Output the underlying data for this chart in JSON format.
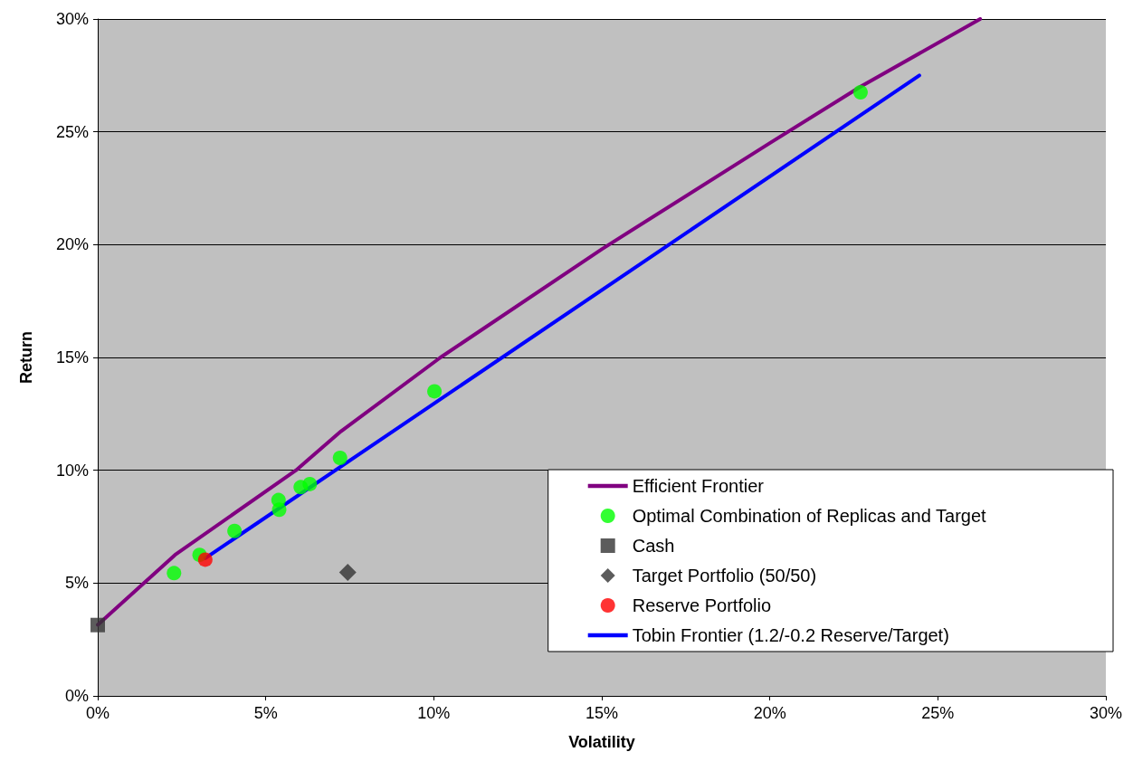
{
  "chart_data": {
    "type": "scatter",
    "xlabel": "Volatility",
    "ylabel": "Return",
    "xlim": [
      0,
      30
    ],
    "ylim": [
      0,
      30
    ],
    "xticks": [
      {
        "value": 0,
        "label": "0%"
      },
      {
        "value": 5,
        "label": "5%"
      },
      {
        "value": 10,
        "label": "10%"
      },
      {
        "value": 15,
        "label": "15%"
      },
      {
        "value": 20,
        "label": "20%"
      },
      {
        "value": 25,
        "label": "25%"
      },
      {
        "value": 30,
        "label": "30%"
      }
    ],
    "yticks": [
      {
        "value": 0,
        "label": "0%"
      },
      {
        "value": 5,
        "label": "5%"
      },
      {
        "value": 10,
        "label": "10%"
      },
      {
        "value": 15,
        "label": "15%"
      },
      {
        "value": 20,
        "label": "20%"
      },
      {
        "value": 25,
        "label": "25%"
      },
      {
        "value": 30,
        "label": "30%"
      }
    ],
    "grid": "y",
    "legend": "bottom right",
    "series": [
      {
        "name": "Efficient Frontier",
        "type": "line",
        "color": "#800080",
        "marker": "none",
        "x": [
          0,
          2.3,
          5.9,
          7.24,
          10.2,
          15,
          20,
          22.7,
          26.26
        ],
        "values": [
          3.15,
          6.25,
          10.0,
          11.73,
          15.0,
          19.8,
          24.5,
          27.0,
          30
        ]
      },
      {
        "name": "Optimal Combination of Replicas and Target",
        "type": "scatter",
        "color": "#00ff00",
        "marker": "circle",
        "x": [
          2.27,
          3.03,
          4.07,
          5.38,
          5.4,
          6.04,
          6.31,
          7.21,
          10.02,
          22.7
        ],
        "values": [
          5.44,
          6.25,
          7.31,
          8.68,
          8.25,
          9.25,
          9.39,
          10.55,
          13.5,
          26.75
        ]
      },
      {
        "name": "Cash",
        "type": "scatter",
        "color": "#333333",
        "marker": "square",
        "x": [
          0
        ],
        "values": [
          3.14
        ]
      },
      {
        "name": "Target Portfolio (50/50)",
        "type": "scatter",
        "color": "#333333",
        "marker": "diamond",
        "x": [
          7.44
        ],
        "values": [
          5.47
        ]
      },
      {
        "name": "Reserve Portfolio",
        "type": "scatter",
        "color": "#ff0000",
        "marker": "circle",
        "x": [
          3.2
        ],
        "values": [
          6.04
        ]
      },
      {
        "name": "Tobin Frontier (1.2/-0.2 Reserve/Target)",
        "type": "line",
        "color": "#0000ff",
        "marker": "none",
        "x": [
          3.2,
          24.45
        ],
        "values": [
          6.1,
          27.5
        ]
      }
    ]
  }
}
